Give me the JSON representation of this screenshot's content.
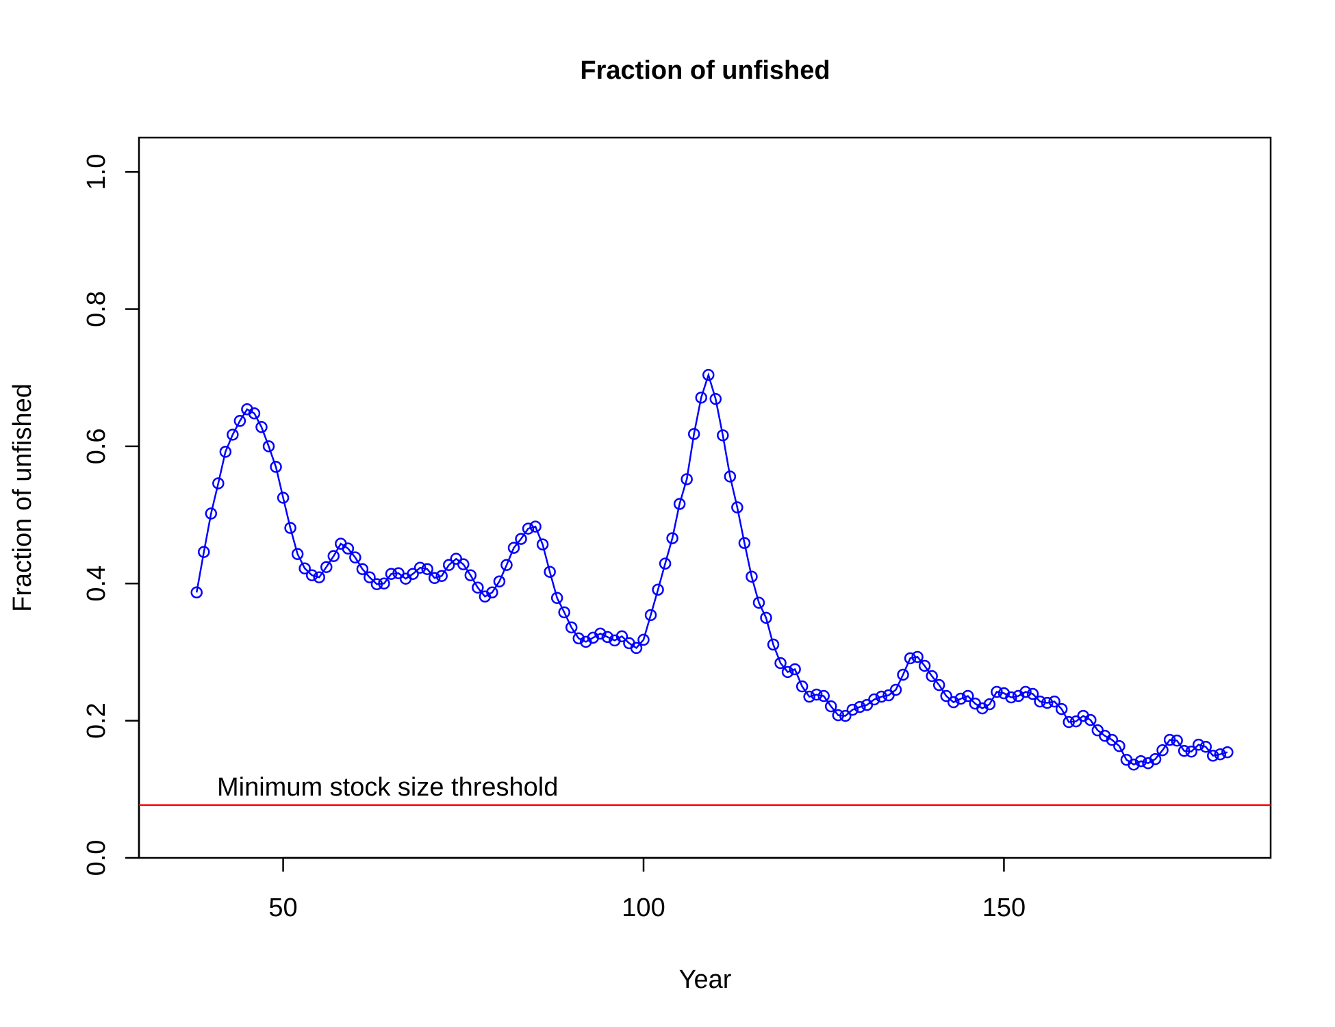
{
  "chart_data": {
    "type": "line",
    "title": "Fraction of unfished",
    "xlabel": "Year",
    "ylabel": "Fraction of unfished",
    "xlim": [
      30,
      187
    ],
    "ylim": [
      0,
      1.05
    ],
    "x_ticks": [
      50,
      100,
      150
    ],
    "x_tick_labels": [
      "50",
      "100",
      "150"
    ],
    "y_ticks": [
      0,
      0.2,
      0.4,
      0.6,
      0.8,
      1.0
    ],
    "y_tick_labels": [
      "0.0",
      "0.2",
      "0.4",
      "0.6",
      "0.8",
      "1.0"
    ],
    "grid": false,
    "legend": "none",
    "series": [
      {
        "color": "#0000ff",
        "marker": "open-circle",
        "x": [
          38,
          39,
          40,
          41,
          42,
          43,
          44,
          45,
          46,
          47,
          48,
          49,
          50,
          51,
          52,
          53,
          54,
          55,
          56,
          57,
          58,
          59,
          60,
          61,
          62,
          63,
          64,
          65,
          66,
          67,
          68,
          69,
          70,
          71,
          72,
          73,
          74,
          75,
          76,
          77,
          78,
          79,
          80,
          81,
          82,
          83,
          84,
          85,
          86,
          87,
          88,
          89,
          90,
          91,
          92,
          93,
          94,
          95,
          96,
          97,
          98,
          99,
          100,
          101,
          102,
          103,
          104,
          105,
          106,
          107,
          108,
          109,
          110,
          111,
          112,
          113,
          114,
          115,
          116,
          117,
          118,
          119,
          120,
          121,
          122,
          123,
          124,
          125,
          126,
          127,
          128,
          129,
          130,
          131,
          132,
          133,
          134,
          135,
          136,
          137,
          138,
          139,
          140,
          141,
          142,
          143,
          144,
          145,
          146,
          147,
          148,
          149,
          150,
          151,
          152,
          153,
          154,
          155,
          156,
          157,
          158,
          159,
          160,
          161,
          162,
          163,
          164,
          165,
          166,
          167,
          168,
          169,
          170,
          171,
          172,
          173,
          174,
          175,
          176,
          177,
          178,
          179,
          180,
          181
        ],
        "y": [
          0.387,
          0.446,
          0.502,
          0.546,
          0.592,
          0.617,
          0.637,
          0.654,
          0.648,
          0.628,
          0.6,
          0.57,
          0.525,
          0.481,
          0.443,
          0.422,
          0.412,
          0.409,
          0.424,
          0.44,
          0.458,
          0.451,
          0.438,
          0.421,
          0.409,
          0.399,
          0.4,
          0.414,
          0.415,
          0.407,
          0.414,
          0.423,
          0.421,
          0.408,
          0.411,
          0.427,
          0.436,
          0.428,
          0.412,
          0.394,
          0.381,
          0.387,
          0.403,
          0.427,
          0.452,
          0.465,
          0.48,
          0.483,
          0.457,
          0.417,
          0.379,
          0.358,
          0.336,
          0.32,
          0.315,
          0.321,
          0.327,
          0.322,
          0.317,
          0.323,
          0.313,
          0.306,
          0.318,
          0.354,
          0.391,
          0.429,
          0.466,
          0.516,
          0.552,
          0.618,
          0.671,
          0.704,
          0.669,
          0.616,
          0.556,
          0.511,
          0.459,
          0.41,
          0.372,
          0.35,
          0.311,
          0.284,
          0.271,
          0.275,
          0.25,
          0.235,
          0.238,
          0.236,
          0.221,
          0.208,
          0.207,
          0.216,
          0.22,
          0.223,
          0.231,
          0.235,
          0.237,
          0.245,
          0.267,
          0.291,
          0.293,
          0.28,
          0.265,
          0.252,
          0.236,
          0.227,
          0.232,
          0.236,
          0.225,
          0.218,
          0.224,
          0.242,
          0.24,
          0.234,
          0.236,
          0.242,
          0.239,
          0.228,
          0.226,
          0.228,
          0.217,
          0.198,
          0.199,
          0.207,
          0.201,
          0.186,
          0.178,
          0.172,
          0.163,
          0.143,
          0.136,
          0.141,
          0.138,
          0.144,
          0.157,
          0.172,
          0.171,
          0.156,
          0.155,
          0.165,
          0.162,
          0.149,
          0.151,
          0.154
        ]
      }
    ],
    "reference_line": {
      "y": 0.077,
      "color": "#ff0000",
      "label": "Minimum stock size threshold"
    }
  }
}
